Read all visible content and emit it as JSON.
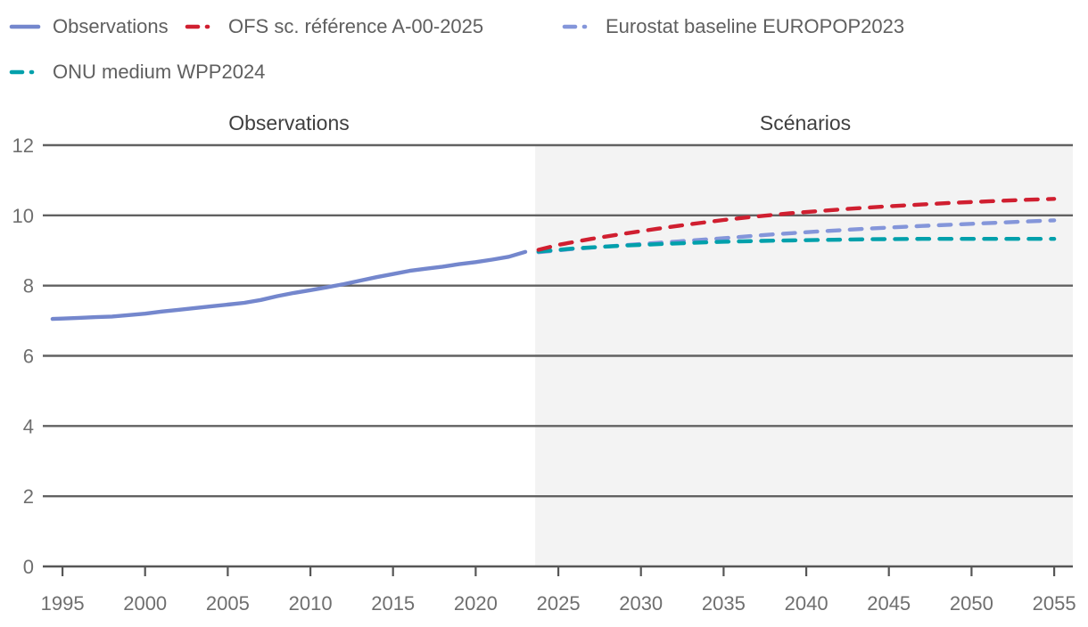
{
  "legend": {
    "position": "top-left",
    "items": [
      {
        "label": "Observations",
        "color": "#7487cd",
        "style": "solid"
      },
      {
        "label": "OFS sc. référence A-00-2025",
        "color": "#d01f30",
        "style": "dashed"
      },
      {
        "label": "Eurostat baseline EUROPOP2023",
        "color": "#8496da",
        "style": "dashed"
      },
      {
        "label": "ONU medium WPP2024",
        "color": "#00a0ab",
        "style": "dashed"
      }
    ]
  },
  "sections": {
    "observations_label": "Observations",
    "scenarios_label": "Scénarios"
  },
  "colors": {
    "scenario_bg": "#f3f3f3",
    "grid": "#616161",
    "axis": "#565656",
    "tick_text": "#6f6f6f",
    "legend_text": "#5f5f5f",
    "section_text": "#3f3f3f"
  },
  "chart_data": {
    "type": "line",
    "title": "",
    "xlabel": "",
    "ylabel": "",
    "xlim": [
      1993.81,
      2056.13
    ],
    "ylim": [
      0,
      12
    ],
    "x_ticks": [
      1995,
      2000,
      2005,
      2010,
      2015,
      2020,
      2025,
      2030,
      2035,
      2040,
      2045,
      2050,
      2055
    ],
    "y_ticks": [
      0,
      2,
      4,
      6,
      8,
      10,
      12
    ],
    "grid": "horizontal",
    "legend_position": "top",
    "scenario_region_start": 2023.6,
    "series": [
      {
        "id": "observations",
        "name": "Observations",
        "color": "#7487cd",
        "dash": "solid",
        "z": 4,
        "x": [
          1994.4,
          1995,
          1996,
          1997,
          1998,
          1999,
          2000,
          2001,
          2002,
          2003,
          2004,
          2005,
          2006,
          2007,
          2008,
          2009,
          2010,
          2011,
          2012,
          2013,
          2014,
          2015,
          2016,
          2017,
          2018,
          2019,
          2020,
          2021,
          2022,
          2023
        ],
        "values": [
          7.05,
          7.06,
          7.08,
          7.1,
          7.12,
          7.16,
          7.2,
          7.26,
          7.31,
          7.36,
          7.41,
          7.46,
          7.51,
          7.59,
          7.7,
          7.79,
          7.87,
          7.95,
          8.04,
          8.14,
          8.24,
          8.33,
          8.42,
          8.48,
          8.54,
          8.61,
          8.67,
          8.74,
          8.82,
          8.96
        ]
      },
      {
        "id": "ofs-reference",
        "name": "OFS sc. référence A-00-2025",
        "color": "#d01f30",
        "dash": "dashed",
        "z": 3,
        "x": [
          2023.8,
          2025,
          2027,
          2029,
          2031,
          2033,
          2035,
          2037,
          2039,
          2041,
          2043,
          2045,
          2047,
          2049,
          2051,
          2053,
          2055
        ],
        "values": [
          9.02,
          9.16,
          9.33,
          9.48,
          9.62,
          9.75,
          9.87,
          9.97,
          10.06,
          10.13,
          10.2,
          10.26,
          10.31,
          10.36,
          10.4,
          10.44,
          10.47
        ]
      },
      {
        "id": "eurostat-baseline",
        "name": "Eurostat baseline EUROPOP2023",
        "color": "#8496da",
        "dash": "dashed",
        "z": 1,
        "x": [
          2023.8,
          2026,
          2029,
          2032,
          2035,
          2038,
          2041,
          2044,
          2047,
          2050,
          2053,
          2055
        ],
        "values": [
          8.95,
          9.05,
          9.15,
          9.25,
          9.35,
          9.46,
          9.55,
          9.63,
          9.7,
          9.76,
          9.82,
          9.86
        ]
      },
      {
        "id": "onu-medium",
        "name": "ONU medium WPP2024",
        "color": "#00a0ab",
        "dash": "dashed",
        "z": 2,
        "x": [
          2023.8,
          2026,
          2029,
          2032,
          2035,
          2038,
          2041,
          2044,
          2047,
          2050,
          2053,
          2055
        ],
        "values": [
          8.97,
          9.06,
          9.14,
          9.2,
          9.25,
          9.28,
          9.3,
          9.32,
          9.33,
          9.33,
          9.33,
          9.33
        ]
      }
    ]
  }
}
